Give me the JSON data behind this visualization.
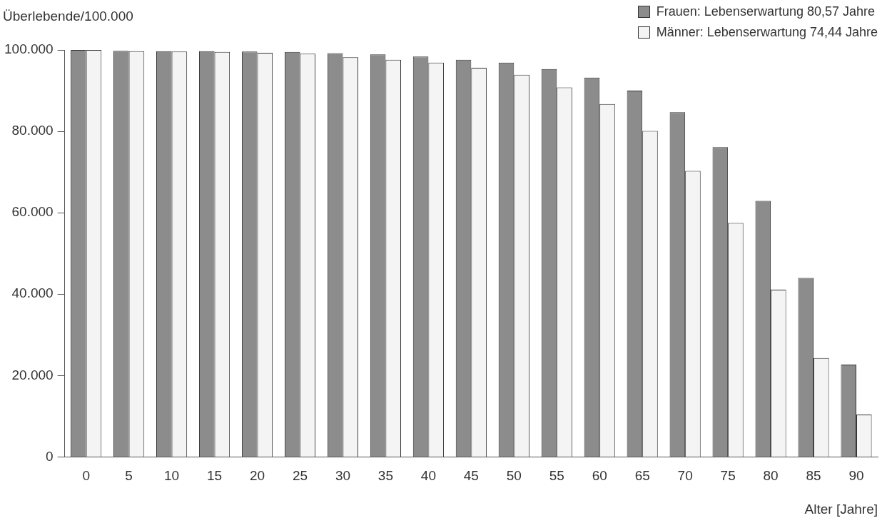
{
  "chart_data": {
    "type": "bar",
    "ylabel": "Überlebende/100.000",
    "xlabel": "Alter [Jahre]",
    "categories": [
      "0",
      "5",
      "10",
      "15",
      "20",
      "25",
      "30",
      "35",
      "40",
      "45",
      "50",
      "55",
      "60",
      "65",
      "70",
      "75",
      "80",
      "85",
      "90"
    ],
    "series": [
      {
        "name": "Frauen: Lebenserwartung 80,57 Jahre",
        "color": "#8c8c8c",
        "values": [
          100000,
          99800,
          99700,
          99700,
          99600,
          99500,
          99200,
          98900,
          98400,
          97600,
          96900,
          95300,
          93200,
          90000,
          84700,
          76100,
          62900,
          44000,
          22700
        ]
      },
      {
        "name": "Männer: Lebenserwartung 74,44 Jahre",
        "color": "#f4f4f4",
        "values": [
          100000,
          99700,
          99600,
          99500,
          99300,
          99100,
          98200,
          97600,
          96900,
          95600,
          93900,
          90800,
          86700,
          80100,
          70300,
          57500,
          41100,
          24300,
          10400
        ]
      }
    ],
    "ylim": [
      0,
      100000
    ],
    "yticks": [
      {
        "value": 0,
        "label": "0"
      },
      {
        "value": 20000,
        "label": "20.000"
      },
      {
        "value": 40000,
        "label": "40.000"
      },
      {
        "value": 60000,
        "label": "60.000"
      },
      {
        "value": 80000,
        "label": "80.000"
      },
      {
        "value": 100000,
        "label": "100.000"
      }
    ],
    "grid": false,
    "legend": "top right"
  }
}
